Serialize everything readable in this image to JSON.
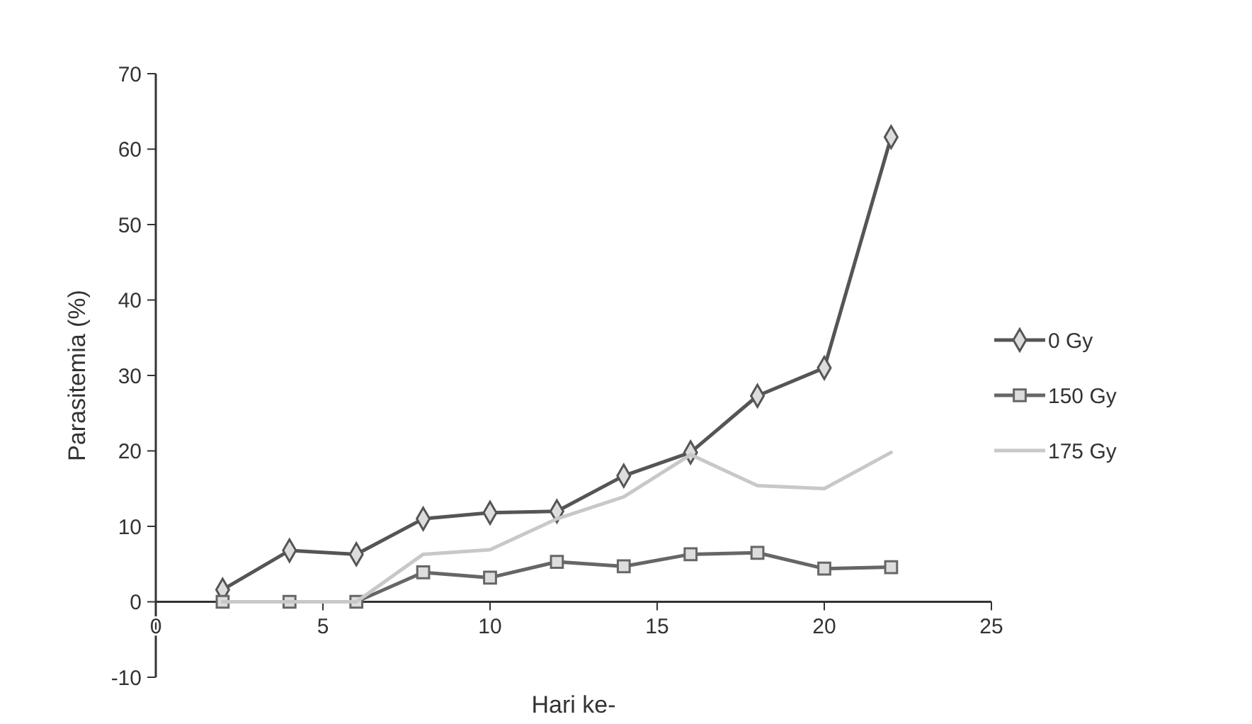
{
  "chart_data": {
    "type": "line",
    "xlabel": "Hari ke-",
    "ylabel": "Parasitemia (%)",
    "x": [
      2,
      4,
      6,
      8,
      10,
      12,
      14,
      16,
      18,
      20,
      22
    ],
    "xlim": [
      0,
      25
    ],
    "xticks": [
      0,
      5,
      10,
      15,
      20,
      25
    ],
    "ylim": [
      -10,
      70
    ],
    "yticks": [
      -10,
      0,
      10,
      20,
      30,
      40,
      50,
      60,
      70
    ],
    "grid": false,
    "legend": "right",
    "series": [
      {
        "name": "0 Gy",
        "color": "#555555",
        "marker": "diamond",
        "values": [
          1.6,
          6.8,
          6.3,
          11,
          11.8,
          12,
          16.7,
          19.8,
          27.3,
          31,
          61.6
        ]
      },
      {
        "name": "150 Gy",
        "color": "#666666",
        "marker": "square",
        "values": [
          0,
          0,
          0,
          3.9,
          3.2,
          5.3,
          4.7,
          6.3,
          6.5,
          4.4,
          4.6
        ]
      },
      {
        "name": "175 Gy",
        "color": "#c8c8c8",
        "marker": "none",
        "values": [
          0,
          0,
          0,
          6.3,
          6.9,
          11,
          13.9,
          19.5,
          15.4,
          15,
          19.8
        ]
      }
    ]
  }
}
